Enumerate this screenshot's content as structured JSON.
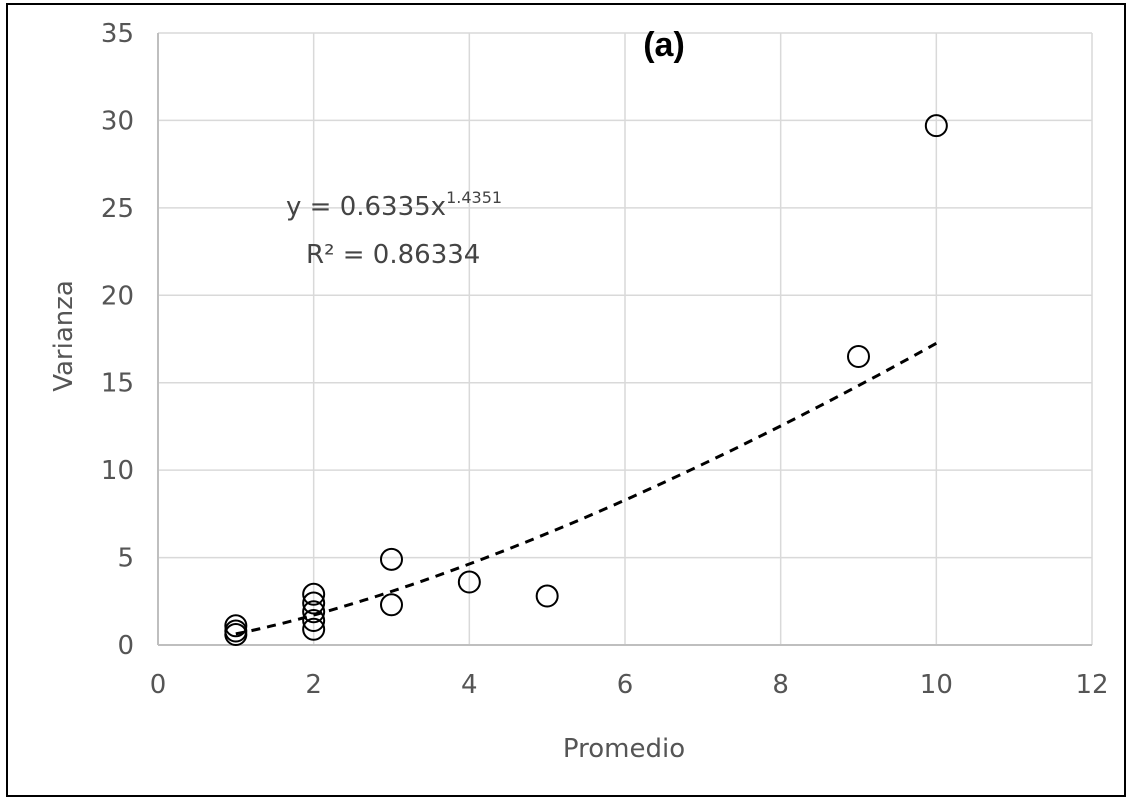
{
  "chart_data": {
    "type": "scatter",
    "panel_label": "(a)",
    "title": "",
    "xlabel": "Promedio",
    "ylabel": "Varianza",
    "xlim": [
      0,
      12
    ],
    "ylim": [
      0,
      35
    ],
    "xticks": [
      0,
      2,
      4,
      6,
      8,
      10,
      12
    ],
    "yticks": [
      0,
      5,
      10,
      15,
      20,
      25,
      30,
      35
    ],
    "grid": true,
    "marker": "open-circle",
    "colors": {
      "points": "#000000",
      "trendline": "#000000",
      "grid": "#d9d9d9",
      "axis": "#bfbfbf"
    },
    "points": [
      {
        "x": 1,
        "y": 0.6
      },
      {
        "x": 1,
        "y": 0.8
      },
      {
        "x": 1,
        "y": 1.1
      },
      {
        "x": 2,
        "y": 0.9
      },
      {
        "x": 2,
        "y": 1.4
      },
      {
        "x": 2,
        "y": 1.9
      },
      {
        "x": 2,
        "y": 2.4
      },
      {
        "x": 2,
        "y": 2.9
      },
      {
        "x": 3,
        "y": 2.3
      },
      {
        "x": 3,
        "y": 4.9
      },
      {
        "x": 4,
        "y": 3.6
      },
      {
        "x": 5,
        "y": 2.8
      },
      {
        "x": 9,
        "y": 16.5
      },
      {
        "x": 10,
        "y": 29.7
      }
    ],
    "trendline": {
      "type": "power",
      "a": 0.6335,
      "b": 1.4351,
      "x_range": [
        1,
        10
      ],
      "style": "dashed",
      "equation_prefix": "y = 0.6335x",
      "equation_exponent": "1.4351",
      "r2_label": "R² = 0.86334"
    }
  }
}
